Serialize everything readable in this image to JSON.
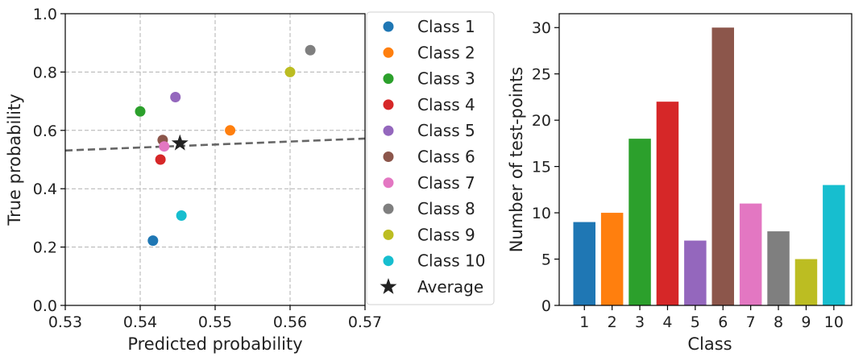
{
  "chart_data": [
    {
      "type": "scatter",
      "xlabel": "Predicted probability",
      "ylabel": "True probability",
      "xlim": [
        0.53,
        0.57
      ],
      "ylim": [
        0.0,
        1.0
      ],
      "xticks": [
        "0.53",
        "0.54",
        "0.55",
        "0.56",
        "0.57"
      ],
      "yticks": [
        "0.0",
        "0.2",
        "0.4",
        "0.6",
        "0.8",
        "1.0"
      ],
      "grid": true,
      "legend_placement": "right",
      "series": [
        {
          "name": "Class 1",
          "color": "#1f77b4",
          "x": 0.5417,
          "y": 0.222
        },
        {
          "name": "Class 2",
          "color": "#ff7f0e",
          "x": 0.552,
          "y": 0.6
        },
        {
          "name": "Class 3",
          "color": "#2ca02c",
          "x": 0.54,
          "y": 0.665
        },
        {
          "name": "Class 4",
          "color": "#d62728",
          "x": 0.5427,
          "y": 0.5
        },
        {
          "name": "Class 5",
          "color": "#9467bd",
          "x": 0.5447,
          "y": 0.714
        },
        {
          "name": "Class 6",
          "color": "#8c564b",
          "x": 0.543,
          "y": 0.567
        },
        {
          "name": "Class 7",
          "color": "#e377c2",
          "x": 0.5432,
          "y": 0.545
        },
        {
          "name": "Class 8",
          "color": "#7f7f7f",
          "x": 0.5627,
          "y": 0.875
        },
        {
          "name": "Class 9",
          "color": "#bcbd22",
          "x": 0.56,
          "y": 0.8
        },
        {
          "name": "Class 10",
          "color": "#17becf",
          "x": 0.5455,
          "y": 0.308
        }
      ],
      "average": {
        "name": "Average",
        "color": "#222222",
        "x": 0.5453,
        "y": 0.556
      },
      "trend_line": {
        "x": [
          0.53,
          0.57
        ],
        "y": [
          0.531,
          0.572
        ],
        "color": "#666666",
        "style": "dashed"
      }
    },
    {
      "type": "bar",
      "xlabel": "Class",
      "ylabel": "Number of test-points",
      "ylim": [
        0,
        31.5
      ],
      "yticks": [
        "0",
        "5",
        "10",
        "15",
        "20",
        "25",
        "30"
      ],
      "grid": false,
      "categories": [
        "1",
        "2",
        "3",
        "4",
        "5",
        "6",
        "7",
        "8",
        "9",
        "10"
      ],
      "values": [
        9,
        10,
        18,
        22,
        7,
        30,
        11,
        8,
        5,
        13
      ],
      "colors": [
        "#1f77b4",
        "#ff7f0e",
        "#2ca02c",
        "#d62728",
        "#9467bd",
        "#8c564b",
        "#e377c2",
        "#7f7f7f",
        "#bcbd22",
        "#17becf"
      ]
    }
  ]
}
